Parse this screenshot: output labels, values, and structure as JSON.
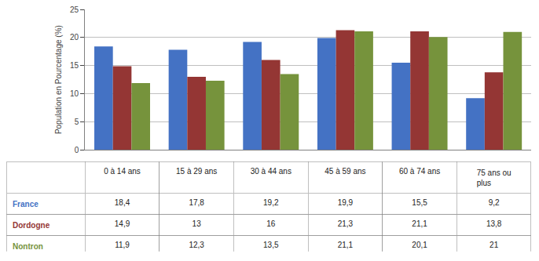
{
  "chart_data": {
    "type": "bar",
    "categories": [
      "0 à 14 ans",
      "15 à 29 ans",
      "30 à 44 ans",
      "45 à 59 ans",
      "60 à 74 ans",
      "75 ans ou\nplus"
    ],
    "series": [
      {
        "name": "France",
        "color": "#4472C4",
        "values": [
          18.4,
          17.8,
          19.2,
          19.9,
          15.5,
          9.2
        ],
        "value_labels": [
          "18,4",
          "17,8",
          "19,2",
          "19,9",
          "15,5",
          "9,2"
        ]
      },
      {
        "name": "Dordogne",
        "color": "#943634",
        "values": [
          14.9,
          13.0,
          16.0,
          21.3,
          21.1,
          13.8
        ],
        "value_labels": [
          "14,9",
          "13",
          "16",
          "21,3",
          "21,1",
          "13,8"
        ]
      },
      {
        "name": "Nontron",
        "color": "#76933C",
        "values": [
          11.9,
          12.3,
          13.5,
          21.1,
          20.1,
          21.0
        ],
        "value_labels": [
          "11,9",
          "12,3",
          "13,5",
          "21,1",
          "20,1",
          "21"
        ]
      }
    ],
    "ylabel": "Population en Pourcentage (%)",
    "ylim": [
      0,
      25
    ],
    "yticks": [
      0,
      5,
      10,
      15,
      20,
      25
    ],
    "grid": true,
    "tick_labels": "y"
  }
}
